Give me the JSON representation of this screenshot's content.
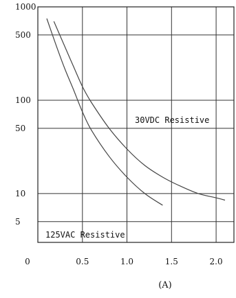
{
  "chart_data": {
    "type": "line",
    "title": "",
    "xlabel": "",
    "ylabel": "",
    "y_scale": "log",
    "grid": true,
    "xlim": [
      0,
      2.2
    ],
    "ylim": [
      3,
      1000
    ],
    "x_ticks": [
      {
        "value": 0,
        "label": "0"
      },
      {
        "value": 0.5,
        "label": "0.5"
      },
      {
        "value": 1.0,
        "label": "1.0"
      },
      {
        "value": 1.5,
        "label": "1.5"
      },
      {
        "value": 2.0,
        "label": "2.0"
      }
    ],
    "y_ticks": [
      {
        "value": 1000,
        "label": "1000"
      },
      {
        "value": 500,
        "label": "500"
      },
      {
        "value": 100,
        "label": "100"
      },
      {
        "value": 50,
        "label": "50"
      },
      {
        "value": 10,
        "label": "10"
      },
      {
        "value": 5,
        "label": "5"
      }
    ],
    "series": [
      {
        "name": "30VDC Resistive",
        "x": [
          0.18,
          0.3,
          0.4,
          0.5,
          0.6,
          0.8,
          1.0,
          1.2,
          1.4,
          1.6,
          1.8,
          2.0,
          2.1
        ],
        "y": [
          700,
          380,
          230,
          140,
          95,
          50,
          30,
          20,
          15,
          12,
          10,
          9,
          8.5
        ]
      },
      {
        "name": "125VAC Resistive",
        "x": [
          0.1,
          0.2,
          0.3,
          0.4,
          0.5,
          0.6,
          0.8,
          1.0,
          1.2,
          1.4
        ],
        "y": [
          750,
          400,
          220,
          130,
          75,
          48,
          25,
          15,
          10,
          7.5
        ]
      }
    ],
    "annotations": [
      "30VDC Resistive",
      "125VAC Resistive"
    ],
    "caption": "(A)"
  }
}
